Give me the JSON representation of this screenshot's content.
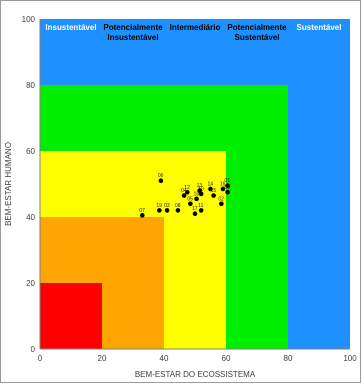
{
  "chart_data": {
    "type": "scatter",
    "title": "",
    "xlabel": "BEM-ESTAR DO ECOSSISTEMA",
    "ylabel": "BEM-ESTAR HUMANO",
    "xlim": [
      0,
      100
    ],
    "ylim": [
      0,
      100
    ],
    "xticks": [
      0,
      20,
      40,
      60,
      80,
      100
    ],
    "yticks": [
      0,
      20,
      40,
      60,
      80,
      100
    ],
    "grid": false,
    "legend": "none",
    "zones": [
      {
        "name": "Insustentável",
        "label_lines": [
          "Insustentável"
        ],
        "max": 20,
        "color": "#ff0000",
        "label_color": "#ffffff"
      },
      {
        "name": "Potencialmente Insustentável",
        "label_lines": [
          "Potencialmente",
          "Insustentável"
        ],
        "max": 40,
        "color": "#ffa500",
        "label_color": "#000000"
      },
      {
        "name": "Intermediário",
        "label_lines": [
          "Intermediário"
        ],
        "max": 60,
        "color": "#ffff00",
        "label_color": "#000000"
      },
      {
        "name": "Potencialmente Sustentável",
        "label_lines": [
          "Potencialmente",
          "Sustentável"
        ],
        "max": 80,
        "color": "#00ee00",
        "label_color": "#000000"
      },
      {
        "name": "Sustentável",
        "label_lines": [
          "Sustentável"
        ],
        "max": 100,
        "color": "#1e90ff",
        "label_color": "#ffffff"
      }
    ],
    "points": [
      {
        "label": "01",
        "x": 60.5,
        "y": 49.5
      },
      {
        "label": "02",
        "x": 58.5,
        "y": 44
      },
      {
        "label": "03",
        "x": 41,
        "y": 42
      },
      {
        "label": "04",
        "x": 46.5,
        "y": 46.5
      },
      {
        "label": "05",
        "x": 48.5,
        "y": 44
      },
      {
        "label": "06",
        "x": 39,
        "y": 51
      },
      {
        "label": "07",
        "x": 33,
        "y": 40.5
      },
      {
        "label": "08",
        "x": 44.5,
        "y": 42
      },
      {
        "label": "09",
        "x": 60.5,
        "y": 47.5
      },
      {
        "label": "10",
        "x": 52,
        "y": 47
      },
      {
        "label": "11",
        "x": 52,
        "y": 42
      },
      {
        "label": "12",
        "x": 47.5,
        "y": 47.5
      },
      {
        "label": "13",
        "x": 51.5,
        "y": 48
      },
      {
        "label": "14",
        "x": 55,
        "y": 48.5
      },
      {
        "label": "15",
        "x": 56,
        "y": 46.5
      },
      {
        "label": "16",
        "x": 59,
        "y": 48.5
      },
      {
        "label": "17",
        "x": 50,
        "y": 41
      },
      {
        "label": "18",
        "x": 50.5,
        "y": 45.5
      },
      {
        "label": "19",
        "x": 38.5,
        "y": 42
      }
    ]
  }
}
